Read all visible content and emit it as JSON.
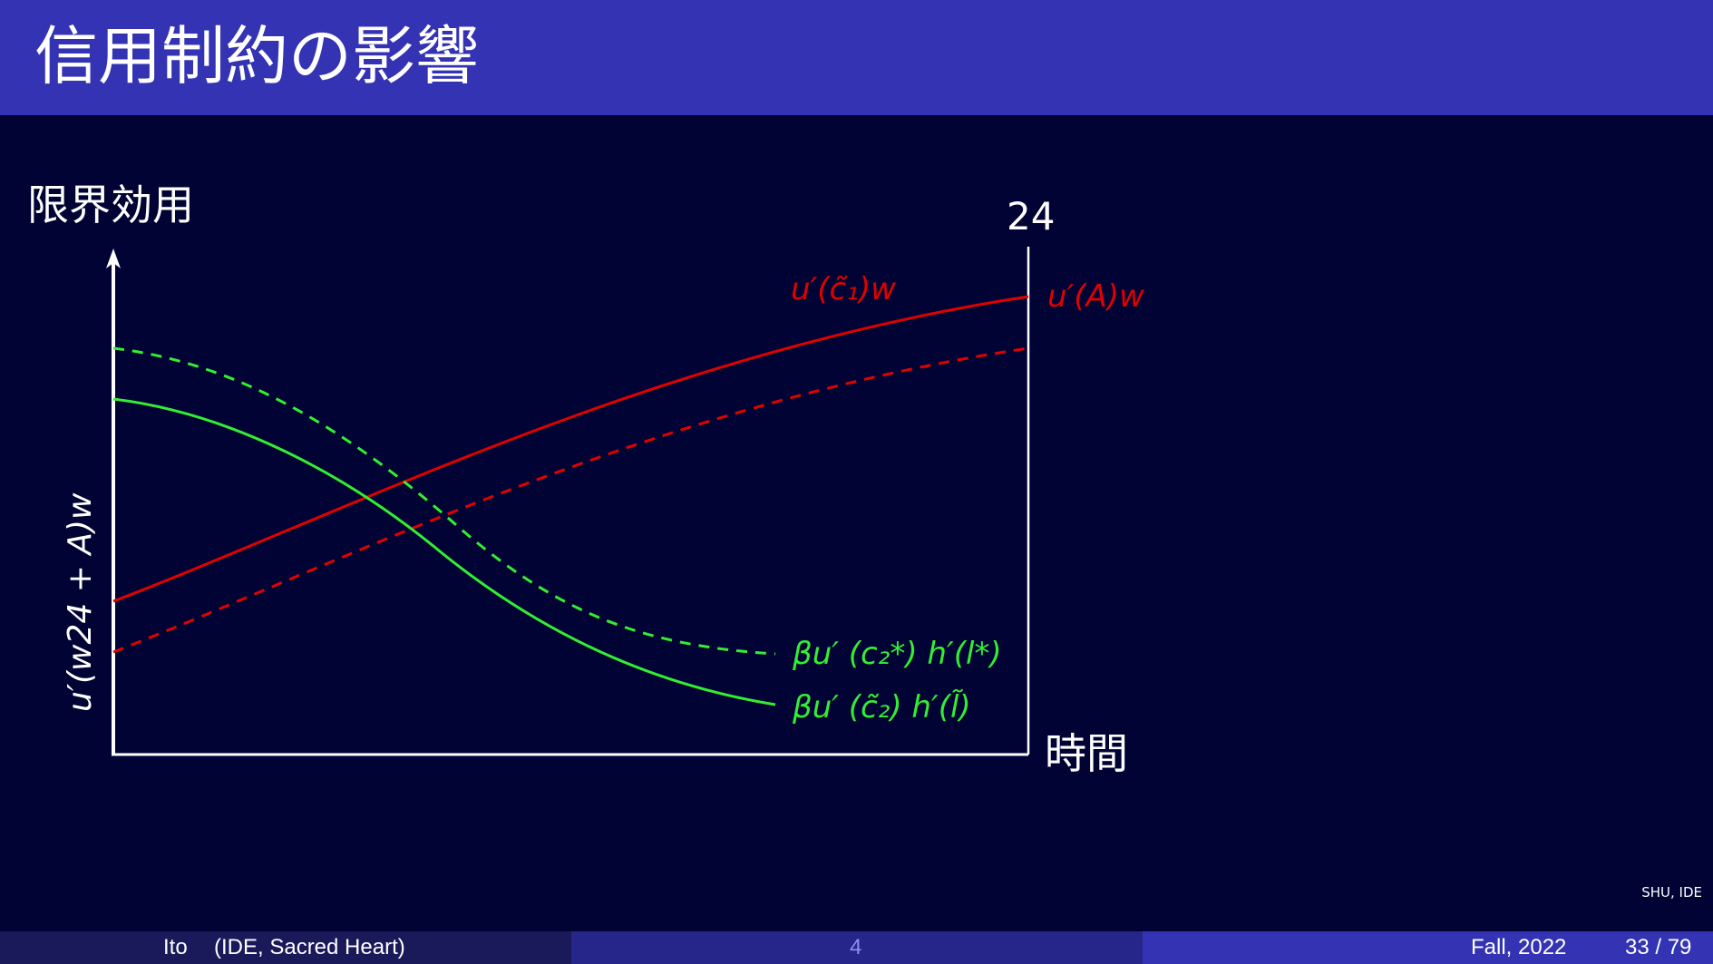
{
  "slide": {
    "title": "信用制約の影響",
    "watermark": "SHU, IDE"
  },
  "diagram": {
    "y_axis_label": "限界効用",
    "x_axis_label": "時間",
    "right_boundary_label": "24",
    "left_vertical_label": "u′(w24 + A)w",
    "red_solid_label": "u′(c̃₁)w",
    "red_end_label": "u′(A)w",
    "green_dashed_label": "βu′ (c₂*) h′(l*)",
    "green_solid_label": "βu′ (c̃₂) h′(l̃)",
    "colors": {
      "background": "#000333",
      "title_bar": "#3333b3",
      "axis": "#ffffff",
      "red": "#e00000",
      "green": "#33ee33"
    }
  },
  "footer": {
    "author": "Ito",
    "institution": "(IDE, Sacred Heart)",
    "page_number": "4",
    "date": "Fall, 2022",
    "slide_count": "33 / 79"
  }
}
